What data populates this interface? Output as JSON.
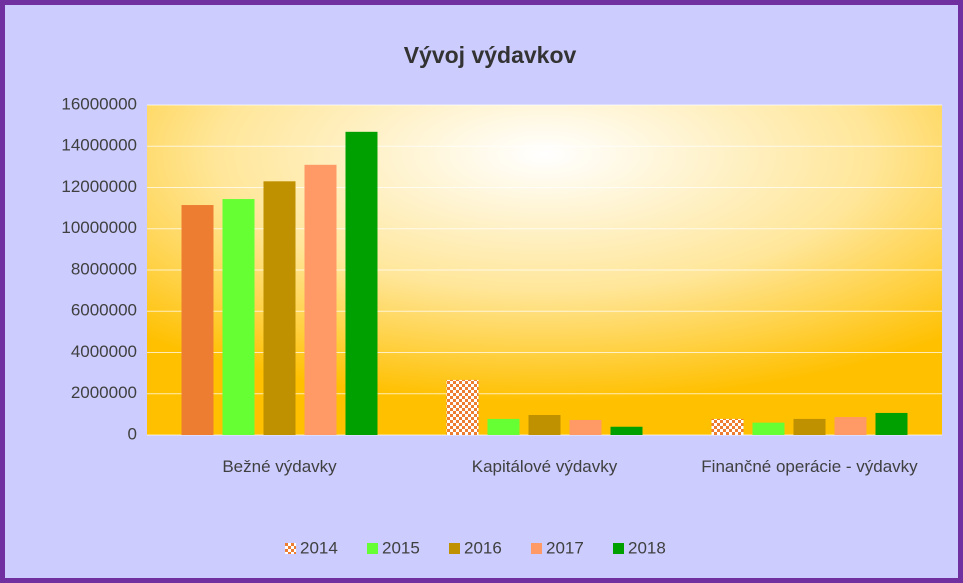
{
  "chart_data": {
    "type": "bar",
    "title": "Vývoj výdavkov",
    "categories": [
      "Bežné výdavky",
      "Kapitálové výdavky",
      "Finančné operácie - výdavky"
    ],
    "series": [
      {
        "name": "2014",
        "color": "#ED7D31",
        "point_styles": [
          "solid",
          "checker",
          "checker"
        ],
        "legend_style": "checker",
        "values": [
          11150000,
          2670000,
          780000
        ]
      },
      {
        "name": "2015",
        "color": "#66FF33",
        "values": [
          11440000,
          780000,
          600000
        ]
      },
      {
        "name": "2016",
        "color": "#BF9000",
        "values": [
          12300000,
          970000,
          780000
        ]
      },
      {
        "name": "2017",
        "color": "#FF9966",
        "values": [
          13100000,
          730000,
          870000
        ]
      },
      {
        "name": "2018",
        "color": "#00A000",
        "values": [
          14700000,
          400000,
          1070000
        ]
      }
    ],
    "ylim": [
      0,
      16000000
    ],
    "yticks": [
      0,
      2000000,
      4000000,
      6000000,
      8000000,
      10000000,
      12000000,
      14000000,
      16000000
    ],
    "grid": true,
    "legend": "bottom"
  }
}
